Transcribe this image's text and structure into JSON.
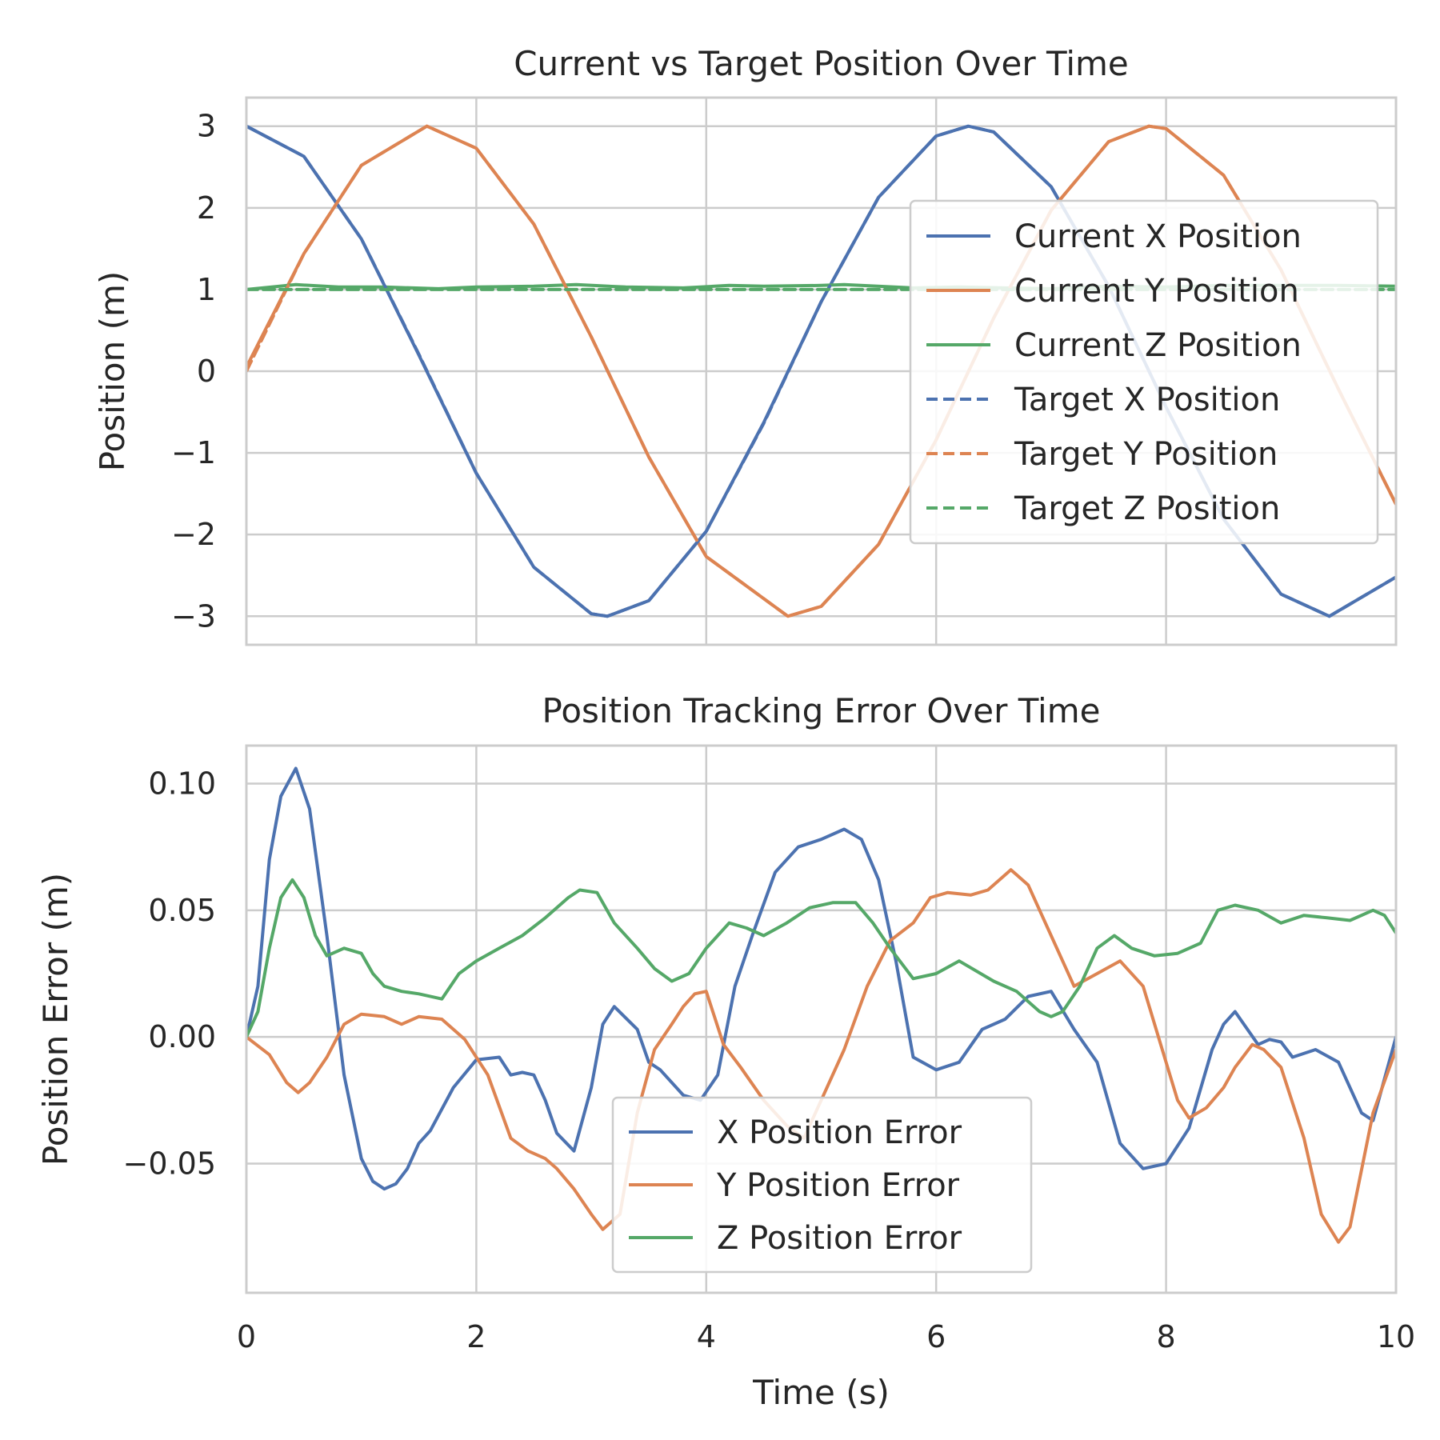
{
  "chart_data": [
    {
      "type": "line",
      "title": "Current vs Target Position Over Time",
      "xlabel": "",
      "ylabel": "Position (m)",
      "xlim": [
        0,
        10
      ],
      "ylim": [
        -3.35,
        3.35
      ],
      "xticks": [
        0,
        2,
        4,
        6,
        8,
        10
      ],
      "xtick_labels_visible": false,
      "yticks": [
        3,
        2,
        1,
        0,
        -1,
        -2,
        -3
      ],
      "ytick_labels": [
        "3",
        "2",
        "1",
        "0",
        "−1",
        "−2",
        "−3"
      ],
      "grid": true,
      "legend_position": "center-right",
      "series": [
        {
          "name": "Current X Position",
          "color": "#4c72b0",
          "dash": "solid",
          "x": [
            0,
            0.5,
            1,
            1.5,
            2,
            2.5,
            3,
            3.14,
            3.5,
            4,
            4.5,
            5,
            5.5,
            6,
            6.28,
            6.5,
            7,
            7.5,
            8,
            8.5,
            9,
            9.42,
            10
          ],
          "y": [
            3.0,
            2.63,
            1.62,
            0.2,
            -1.25,
            -2.4,
            -2.97,
            -3.0,
            -2.81,
            -1.96,
            -0.63,
            0.85,
            2.13,
            2.88,
            3.0,
            2.93,
            2.26,
            1.04,
            -0.44,
            -1.81,
            -2.73,
            -3.0,
            -2.52
          ]
        },
        {
          "name": "Current Y Position",
          "color": "#dd8452",
          "dash": "solid",
          "x": [
            0,
            0.5,
            1,
            1.57,
            2,
            2.5,
            3,
            3.5,
            4,
            4.71,
            5,
            5.5,
            6,
            6.5,
            7,
            7.5,
            7.85,
            8,
            8.5,
            9,
            9.5,
            10
          ],
          "y": [
            0.05,
            1.44,
            2.52,
            3.0,
            2.73,
            1.8,
            0.42,
            -1.05,
            -2.27,
            -3.0,
            -2.88,
            -2.12,
            -0.84,
            0.65,
            1.97,
            2.81,
            3.0,
            2.97,
            2.4,
            1.24,
            -0.22,
            -1.63
          ]
        },
        {
          "name": "Current Z Position",
          "color": "#55a868",
          "dash": "solid",
          "x": [
            0,
            0.43,
            0.8,
            1.2,
            1.67,
            2,
            2.5,
            2.87,
            3.3,
            3.8,
            4.2,
            4.5,
            5,
            5.2,
            5.8,
            6.2,
            6.6,
            7.0,
            7.5,
            8,
            8.5,
            9,
            9.5,
            10
          ],
          "y": [
            1.0,
            1.06,
            1.03,
            1.03,
            1.01,
            1.03,
            1.04,
            1.06,
            1.03,
            1.02,
            1.05,
            1.04,
            1.05,
            1.06,
            1.02,
            1.03,
            1.02,
            1.01,
            1.04,
            1.03,
            1.05,
            1.05,
            1.05,
            1.04
          ]
        },
        {
          "name": "Target X Position",
          "color": "#4c72b0",
          "dash": "dashed",
          "x": [
            0,
            0.5,
            1,
            1.5,
            2,
            2.5,
            3,
            3.14,
            3.5,
            4,
            4.5,
            5,
            5.5,
            6,
            6.28,
            6.5,
            7,
            7.5,
            8,
            8.5,
            9,
            9.42,
            10
          ],
          "y": [
            3.0,
            2.63,
            1.62,
            0.21,
            -1.25,
            -2.4,
            -2.97,
            -3.0,
            -2.81,
            -1.96,
            -0.64,
            0.85,
            2.13,
            2.88,
            3.0,
            2.93,
            2.26,
            1.04,
            -0.44,
            -1.81,
            -2.73,
            -3.0,
            -2.52
          ]
        },
        {
          "name": "Target Y Position",
          "color": "#dd8452",
          "dash": "dashed",
          "x": [
            0,
            0.5,
            1,
            1.57,
            2,
            2.5,
            3,
            3.5,
            4,
            4.71,
            5,
            5.5,
            6,
            6.5,
            7,
            7.5,
            7.85,
            8,
            8.5,
            9,
            9.5,
            10
          ],
          "y": [
            0.0,
            1.44,
            2.52,
            3.0,
            2.73,
            1.8,
            0.42,
            -1.05,
            -2.27,
            -3.0,
            -2.88,
            -2.12,
            -0.84,
            0.65,
            1.97,
            2.81,
            3.0,
            2.97,
            2.4,
            1.24,
            -0.22,
            -1.63
          ]
        },
        {
          "name": "Target Z Position",
          "color": "#55a868",
          "dash": "dashed",
          "x": [
            0,
            10
          ],
          "y": [
            1.0,
            1.0
          ]
        }
      ]
    },
    {
      "type": "line",
      "title": "Position Tracking Error Over Time",
      "xlabel": "Time (s)",
      "ylabel": "Position Error (m)",
      "xlim": [
        0,
        10
      ],
      "ylim": [
        -0.101,
        0.115
      ],
      "xticks": [
        0,
        2,
        4,
        6,
        8,
        10
      ],
      "xtick_labels": [
        "0",
        "2",
        "4",
        "6",
        "8",
        "10"
      ],
      "yticks": [
        0.1,
        0.05,
        0.0,
        -0.05
      ],
      "ytick_labels": [
        "0.10",
        "0.05",
        "0.00",
        "−0.05"
      ],
      "grid": true,
      "legend_position": "lower-center",
      "series": [
        {
          "name": "X Position Error",
          "color": "#4c72b0",
          "x": [
            0,
            0.1,
            0.2,
            0.3,
            0.43,
            0.55,
            0.7,
            0.85,
            1.0,
            1.1,
            1.2,
            1.3,
            1.4,
            1.5,
            1.6,
            1.8,
            2.0,
            2.2,
            2.3,
            2.4,
            2.5,
            2.6,
            2.7,
            2.85,
            3.0,
            3.1,
            3.2,
            3.4,
            3.5,
            3.6,
            3.8,
            3.95,
            4.1,
            4.25,
            4.4,
            4.6,
            4.8,
            5.0,
            5.2,
            5.35,
            5.5,
            5.65,
            5.8,
            6.0,
            6.2,
            6.4,
            6.6,
            6.8,
            7.0,
            7.2,
            7.4,
            7.6,
            7.8,
            8.0,
            8.2,
            8.4,
            8.5,
            8.6,
            8.8,
            8.9,
            9.0,
            9.1,
            9.3,
            9.5,
            9.7,
            9.8,
            10
          ],
          "y": [
            0.0,
            0.02,
            0.07,
            0.095,
            0.106,
            0.09,
            0.04,
            -0.015,
            -0.048,
            -0.057,
            -0.06,
            -0.058,
            -0.052,
            -0.042,
            -0.037,
            -0.02,
            -0.009,
            -0.008,
            -0.015,
            -0.014,
            -0.015,
            -0.025,
            -0.038,
            -0.045,
            -0.02,
            0.005,
            0.012,
            0.003,
            -0.01,
            -0.013,
            -0.023,
            -0.025,
            -0.015,
            0.02,
            0.04,
            0.065,
            0.075,
            0.078,
            0.082,
            0.078,
            0.062,
            0.03,
            -0.008,
            -0.013,
            -0.01,
            0.003,
            0.007,
            0.016,
            0.018,
            0.003,
            -0.01,
            -0.042,
            -0.052,
            -0.05,
            -0.036,
            -0.005,
            0.005,
            0.01,
            -0.003,
            -0.001,
            -0.002,
            -0.008,
            -0.005,
            -0.01,
            -0.03,
            -0.033,
            0.0
          ]
        },
        {
          "name": "Y Position Error",
          "color": "#dd8452",
          "x": [
            0,
            0.2,
            0.35,
            0.45,
            0.55,
            0.7,
            0.85,
            1.0,
            1.2,
            1.35,
            1.5,
            1.7,
            1.9,
            2.1,
            2.3,
            2.45,
            2.6,
            2.7,
            2.85,
            3.0,
            3.1,
            3.25,
            3.4,
            3.55,
            3.7,
            3.8,
            3.9,
            4.0,
            4.15,
            4.3,
            4.5,
            4.7,
            4.85,
            5.0,
            5.2,
            5.4,
            5.6,
            5.8,
            5.95,
            6.1,
            6.3,
            6.45,
            6.65,
            6.8,
            7.0,
            7.2,
            7.4,
            7.6,
            7.8,
            8.0,
            8.1,
            8.2,
            8.35,
            8.5,
            8.6,
            8.75,
            8.85,
            9.0,
            9.2,
            9.35,
            9.5,
            9.6,
            9.8,
            10
          ],
          "y": [
            0.0,
            -0.007,
            -0.018,
            -0.022,
            -0.018,
            -0.008,
            0.005,
            0.009,
            0.008,
            0.005,
            0.008,
            0.007,
            -0.001,
            -0.015,
            -0.04,
            -0.045,
            -0.048,
            -0.052,
            -0.06,
            -0.07,
            -0.076,
            -0.07,
            -0.03,
            -0.005,
            0.005,
            0.012,
            0.017,
            0.018,
            -0.003,
            -0.012,
            -0.025,
            -0.035,
            -0.04,
            -0.025,
            -0.005,
            0.02,
            0.038,
            0.045,
            0.055,
            0.057,
            0.056,
            0.058,
            0.066,
            0.06,
            0.04,
            0.02,
            0.025,
            0.03,
            0.02,
            -0.01,
            -0.025,
            -0.032,
            -0.028,
            -0.02,
            -0.012,
            -0.003,
            -0.005,
            -0.012,
            -0.04,
            -0.07,
            -0.081,
            -0.075,
            -0.03,
            -0.005
          ]
        },
        {
          "name": "Z Position Error",
          "color": "#55a868",
          "x": [
            0,
            0.1,
            0.2,
            0.3,
            0.4,
            0.5,
            0.6,
            0.7,
            0.85,
            1.0,
            1.1,
            1.2,
            1.35,
            1.5,
            1.7,
            1.85,
            2.0,
            2.2,
            2.4,
            2.6,
            2.8,
            2.9,
            3.05,
            3.2,
            3.4,
            3.55,
            3.7,
            3.85,
            4.0,
            4.2,
            4.35,
            4.5,
            4.7,
            4.9,
            5.1,
            5.3,
            5.45,
            5.6,
            5.8,
            6.0,
            6.2,
            6.5,
            6.7,
            6.9,
            7.0,
            7.1,
            7.25,
            7.4,
            7.55,
            7.7,
            7.9,
            8.1,
            8.3,
            8.45,
            8.6,
            8.8,
            9.0,
            9.2,
            9.4,
            9.6,
            9.8,
            9.9,
            10
          ],
          "y": [
            0.0,
            0.01,
            0.035,
            0.055,
            0.062,
            0.055,
            0.04,
            0.032,
            0.035,
            0.033,
            0.025,
            0.02,
            0.018,
            0.017,
            0.015,
            0.025,
            0.03,
            0.035,
            0.04,
            0.047,
            0.055,
            0.058,
            0.057,
            0.045,
            0.035,
            0.027,
            0.022,
            0.025,
            0.035,
            0.045,
            0.043,
            0.04,
            0.045,
            0.051,
            0.053,
            0.053,
            0.045,
            0.035,
            0.023,
            0.025,
            0.03,
            0.022,
            0.018,
            0.01,
            0.008,
            0.01,
            0.02,
            0.035,
            0.04,
            0.035,
            0.032,
            0.033,
            0.037,
            0.05,
            0.052,
            0.05,
            0.045,
            0.048,
            0.047,
            0.046,
            0.05,
            0.048,
            0.041
          ]
        }
      ]
    }
  ]
}
